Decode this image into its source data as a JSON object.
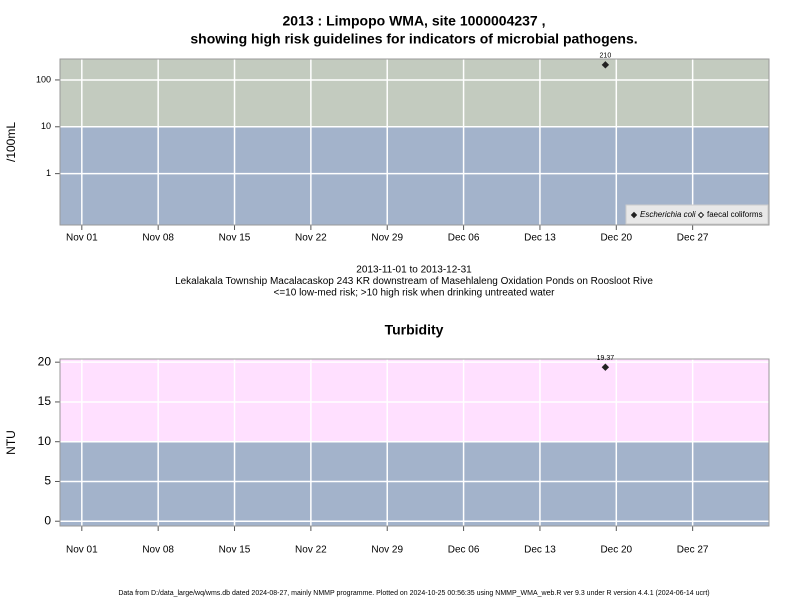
{
  "chart_data": [
    {
      "type": "scatter",
      "title": [
        "2013 : Limpopo WMA, site 1000004237 ,",
        "showing high risk guidelines for indicators of microbial pathogens."
      ],
      "ylabel": "/100mL",
      "log_y": true,
      "ylim": [
        0.08,
        280
      ],
      "yticks": [
        1,
        10,
        100
      ],
      "xlim": [
        "2013-10-30",
        "2014-01-03"
      ],
      "xticks": [
        {
          "value": "2013-11-01",
          "label": "Nov 01"
        },
        {
          "value": "2013-11-08",
          "label": "Nov 08"
        },
        {
          "value": "2013-11-15",
          "label": "Nov 15"
        },
        {
          "value": "2013-11-22",
          "label": "Nov 22"
        },
        {
          "value": "2013-11-29",
          "label": "Nov 29"
        },
        {
          "value": "2013-12-06",
          "label": "Dec 06"
        },
        {
          "value": "2013-12-13",
          "label": "Dec 13"
        },
        {
          "value": "2013-12-20",
          "label": "Dec 20"
        },
        {
          "value": "2013-12-27",
          "label": "Dec 27"
        }
      ],
      "threshold": 10,
      "band_colors": [
        "#a3b3cb",
        "#c3cbbf"
      ],
      "grid": true,
      "legend": "lower right",
      "x": [
        "2013-12-19"
      ],
      "series": [
        {
          "name": "Escherichia coli",
          "color": "#222222",
          "marker": "filled",
          "values": [
            210
          ]
        },
        {
          "name": "faecal coliforms",
          "color": "#222222",
          "marker": "open",
          "values": [
            null
          ]
        }
      ],
      "notes": [
        "2013-11-01 to 2013-12-31",
        "Lekalakala Township Macalacaskop 243 KR downstream of Masehlaleng Oxidation Ponds on Roosloot Rive",
        "<=10 low-med risk; >10 high risk when drinking untreated water"
      ]
    },
    {
      "type": "scatter",
      "title": [
        "Turbidity"
      ],
      "ylabel": "NTU",
      "log_y": false,
      "ylim": [
        -0.6,
        20.4
      ],
      "yticks": [
        0,
        5,
        10,
        15,
        20
      ],
      "xlim": [
        "2013-10-30",
        "2014-01-03"
      ],
      "xticks": [
        {
          "value": "2013-11-01",
          "label": "Nov 01"
        },
        {
          "value": "2013-11-08",
          "label": "Nov 08"
        },
        {
          "value": "2013-11-15",
          "label": "Nov 15"
        },
        {
          "value": "2013-11-22",
          "label": "Nov 22"
        },
        {
          "value": "2013-11-29",
          "label": "Nov 29"
        },
        {
          "value": "2013-12-06",
          "label": "Dec 06"
        },
        {
          "value": "2013-12-13",
          "label": "Dec 13"
        },
        {
          "value": "2013-12-20",
          "label": "Dec 20"
        },
        {
          "value": "2013-12-27",
          "label": "Dec 27"
        }
      ],
      "threshold": 10,
      "band_colors": [
        "#a3b3cb",
        "#ffe0ff"
      ],
      "grid": true,
      "x": [
        "2013-12-19"
      ],
      "series": [
        {
          "color": "#222222",
          "marker": "filled",
          "values": [
            19.37
          ]
        }
      ]
    }
  ],
  "footer": "Data from D:/data_large/wq/wms.db dated 2024-08-27, mainly NMMP programme. Plotted on 2024-10-25 00:56:35 using NMMP_WMA_web.R ver 9.3 under R version 4.4.1 (2024-06-14 ucrt)"
}
